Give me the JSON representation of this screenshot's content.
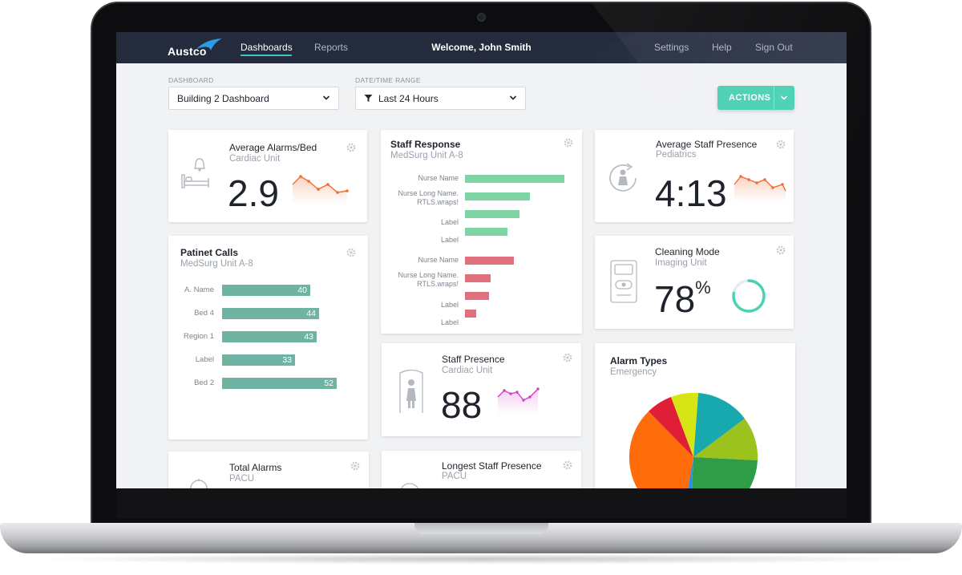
{
  "nav": {
    "logo": "Austco",
    "dashboards": "Dashboards",
    "reports": "Reports",
    "welcome": "Welcome, John Smith",
    "settings": "Settings",
    "help": "Help",
    "sign_out": "Sign Out"
  },
  "filters": {
    "dashboard_label": "DASHBOARD",
    "dashboard_value": "Building 2 Dashboard",
    "range_label": "DATE/TIME RANGE",
    "range_value": "Last 24 Hours",
    "actions": "ACTIONS"
  },
  "colors": {
    "topbar": "#232b3d",
    "accent": "#4cd1b5",
    "teal_bar": "#6fb3a3",
    "green_bar": "#7fd4a3",
    "red_bar": "#e0707e",
    "sparkline_orange": "#f06b2c",
    "sparkline_magenta": "#d43fc9"
  },
  "cards": {
    "avg_alarms": {
      "title": "Average Alarms/Bed",
      "subtitle": "Cardiac Unit",
      "value": "2.9",
      "icon": "bed-icon"
    },
    "patient_calls": {
      "title": "Patinet Calls",
      "subtitle": "MedSurg Unit A-8",
      "bars": [
        {
          "label": "A. Name",
          "value": 40
        },
        {
          "label": "Bed 4",
          "value": 44
        },
        {
          "label": "Region 1",
          "value": 43
        },
        {
          "label": "Label",
          "value": 33
        },
        {
          "label": "Bed 2",
          "value": 52
        }
      ]
    },
    "total_alarms": {
      "title": "Total Alarms",
      "subtitle": "PACU"
    },
    "staff_response": {
      "title": "Staff Response",
      "subtitle": "MedSurg Unit A-8",
      "green_labels": [
        "Nurse Name",
        "Nurse Long Name. RTLS.wraps!",
        "Label",
        "Label"
      ],
      "red_labels": [
        "Nurse Name",
        "Nurse Long Name. RTLS.wraps!",
        "Label",
        "Label"
      ]
    },
    "staff_presence": {
      "title": "Staff Presence",
      "subtitle": "Cardiac Unit",
      "value": "88"
    },
    "longest_presence": {
      "title": "Longest Staff Presence",
      "subtitle": "PACU"
    },
    "avg_presence": {
      "title": "Average Staff Presence",
      "subtitle": "Pediatrics",
      "value": "4:13"
    },
    "cleaning": {
      "title": "Cleaning Mode",
      "subtitle": "Imaging Unit",
      "value": "78",
      "unit": "%",
      "progress": 0.78
    },
    "alarm_types": {
      "title": "Alarm Types",
      "subtitle": "Emergency"
    }
  }
}
